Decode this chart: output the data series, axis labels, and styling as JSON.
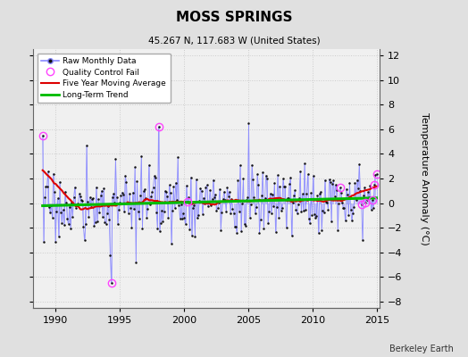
{
  "title": "MOSS SPRINGS",
  "subtitle": "45.267 N, 117.683 W (United States)",
  "ylabel": "Temperature Anomaly (°C)",
  "footer": "Berkeley Earth",
  "xlim": [
    1988.3,
    2015.2
  ],
  "ylim": [
    -8.5,
    12.5
  ],
  "yticks": [
    -8,
    -6,
    -4,
    -2,
    0,
    2,
    4,
    6,
    8,
    10,
    12
  ],
  "xticks": [
    1990,
    1995,
    2000,
    2005,
    2010,
    2015
  ],
  "bg_color": "#e0e0e0",
  "plot_bg_color": "#f0f0f0",
  "raw_line_color": "#8888ff",
  "raw_marker_color": "#111111",
  "qc_fail_color": "#ff44ff",
  "moving_avg_color": "#dd0000",
  "trend_color": "#00bb00",
  "grid_color": "#cccccc"
}
